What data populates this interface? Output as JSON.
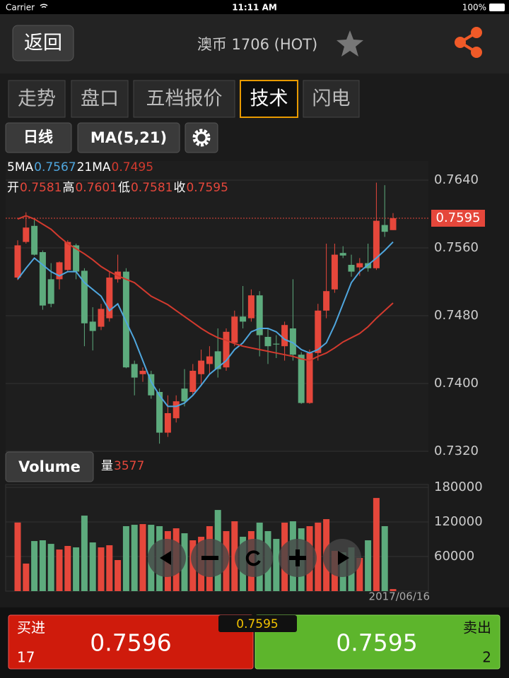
{
  "status_bar": {
    "carrier": "Carrier",
    "time": "11:11 AM",
    "battery": "100%"
  },
  "header": {
    "back": "返回",
    "title": "澳币 1706 (HOT)"
  },
  "tabs": [
    "走势",
    "盘口",
    "五档报价",
    "技术",
    "闪电"
  ],
  "active_tab": 3,
  "toolbar": {
    "period": "日线",
    "indicator": "MA(5,21)"
  },
  "chart_data": [
    {
      "type": "candlestick",
      "ohlc_labels": {
        "open": "开",
        "high": "高",
        "low": "低",
        "close": "收"
      },
      "open": [
        0.7525,
        0.7567,
        0.7586,
        0.7555,
        0.7523,
        0.7523,
        0.7534,
        0.7563,
        0.7533,
        0.7473,
        0.7467,
        0.7477,
        0.7523,
        0.7532,
        0.7423,
        0.7411,
        0.7411,
        0.739,
        0.7342,
        0.7359,
        0.7394,
        0.739,
        0.7411,
        0.7423,
        0.7438,
        0.7419,
        0.7448,
        0.7479,
        0.7477,
        0.7504,
        0.7455,
        0.7447,
        0.7444,
        0.7465,
        0.7434,
        0.7377,
        0.7436,
        0.7486,
        0.7511,
        0.7554,
        0.754,
        0.7537,
        0.7542,
        0.7536,
        0.7587,
        0.7581
      ],
      "high": [
        0.7569,
        0.7602,
        0.7593,
        0.7557,
        0.7542,
        0.7544,
        0.7569,
        0.7565,
        0.7536,
        0.749,
        0.7494,
        0.7532,
        0.7552,
        0.7536,
        0.7427,
        0.7419,
        0.7415,
        0.7394,
        0.7386,
        0.7386,
        0.7417,
        0.7423,
        0.744,
        0.7444,
        0.7465,
        0.7465,
        0.7486,
        0.7515,
        0.7511,
        0.7509,
        0.7465,
        0.7457,
        0.7473,
        0.7523,
        0.7437,
        0.744,
        0.7494,
        0.7565,
        0.7565,
        0.7562,
        0.7552,
        0.7548,
        0.7565,
        0.7637,
        0.7634,
        0.7601
      ],
      "low": [
        0.7522,
        0.7565,
        0.7551,
        0.7487,
        0.749,
        0.7511,
        0.7532,
        0.7523,
        0.7444,
        0.7439,
        0.7463,
        0.7473,
        0.7519,
        0.7418,
        0.7386,
        0.7402,
        0.7382,
        0.7329,
        0.7337,
        0.7354,
        0.7373,
        0.7386,
        0.7398,
        0.7411,
        0.7407,
        0.7415,
        0.7444,
        0.7465,
        0.7473,
        0.7432,
        0.7423,
        0.743,
        0.7427,
        0.7427,
        0.7376,
        0.7376,
        0.7427,
        0.7477,
        0.7507,
        0.7548,
        0.7526,
        0.7527,
        0.7532,
        0.7534,
        0.7573,
        0.7581
      ],
      "close": [
        0.7563,
        0.7584,
        0.7552,
        0.7492,
        0.7494,
        0.7543,
        0.7567,
        0.7532,
        0.7471,
        0.7462,
        0.7488,
        0.7525,
        0.7532,
        0.7419,
        0.7407,
        0.7415,
        0.7386,
        0.7342,
        0.7365,
        0.7379,
        0.7379,
        0.7415,
        0.7427,
        0.7432,
        0.7417,
        0.7461,
        0.7479,
        0.7473,
        0.7504,
        0.7457,
        0.7444,
        0.7446,
        0.7469,
        0.7434,
        0.7377,
        0.7436,
        0.7486,
        0.7509,
        0.7552,
        0.7551,
        0.7532,
        0.7542,
        0.7536,
        0.7592,
        0.7579,
        0.7595
      ],
      "series": [
        {
          "name": "5MA",
          "color": "#4fa6de",
          "values": [
            0.7523,
            0.7536,
            0.7548,
            0.754,
            0.7532,
            0.7527,
            0.7532,
            0.7532,
            0.7519,
            0.7511,
            0.7503,
            0.7486,
            0.7494,
            0.7473,
            0.7452,
            0.7427,
            0.7402,
            0.7386,
            0.7373,
            0.7373,
            0.7377,
            0.7386,
            0.7398,
            0.7411,
            0.7419,
            0.7427,
            0.744,
            0.7448,
            0.7461,
            0.7465,
            0.7465,
            0.7461,
            0.7452,
            0.7448,
            0.744,
            0.7436,
            0.744,
            0.7448,
            0.7469,
            0.7494,
            0.7519,
            0.7532,
            0.754,
            0.7548,
            0.7557,
            0.7567
          ]
        },
        {
          "name": "21MA",
          "color": "#d23a2e",
          "values": [
            0.7594,
            0.7598,
            0.7594,
            0.7588,
            0.7582,
            0.7573,
            0.7565,
            0.7559,
            0.7553,
            0.7546,
            0.7538,
            0.7532,
            0.7527,
            0.7523,
            0.7519,
            0.7511,
            0.7503,
            0.7498,
            0.7493,
            0.7486,
            0.7479,
            0.7472,
            0.7465,
            0.7459,
            0.7454,
            0.7451,
            0.7447,
            0.7444,
            0.7442,
            0.744,
            0.7438,
            0.7436,
            0.7434,
            0.7432,
            0.7429,
            0.7427,
            0.7432,
            0.7436,
            0.7442,
            0.7449,
            0.7454,
            0.7459,
            0.7467,
            0.7477,
            0.7486,
            0.7495
          ]
        }
      ],
      "up_color": "#e5473b",
      "down_color": "#5dab7d",
      "ylim": [
        0.732,
        0.764
      ],
      "yticks": [
        {
          "value": 0.764,
          "label": "0.7640"
        },
        {
          "value": 0.756,
          "label": "0.7560"
        },
        {
          "value": 0.748,
          "label": "0.7480"
        },
        {
          "value": 0.74,
          "label": "0.7400"
        },
        {
          "value": 0.732,
          "label": "0.7320"
        }
      ],
      "grid": true
    },
    {
      "type": "bar",
      "title": "Volume",
      "value_label": "量",
      "values": [
        119000,
        47800,
        86900,
        88200,
        82000,
        72200,
        78400,
        75900,
        131000,
        84500,
        75900,
        79600,
        53900,
        112700,
        115100,
        116300,
        115100,
        112700,
        104100,
        109000,
        100400,
        88200,
        94300,
        112700,
        140800,
        104100,
        121200,
        94300,
        104100,
        118800,
        104100,
        90600,
        118800,
        121200,
        109000,
        112700,
        118800,
        124900,
        69800,
        67300,
        75900,
        57600,
        88200,
        161600,
        112700,
        3577
      ],
      "ylim": [
        0,
        185000
      ],
      "yticks": [
        180000,
        120000,
        60000
      ],
      "x_label": "2017/06/16"
    }
  ],
  "quote": {
    "last": 0.7595,
    "buy_label": "买进",
    "buy_price": 0.7596,
    "buy_qty": 17,
    "sell_label": "卖出",
    "sell_price": 0.7595,
    "sell_qty": 2
  }
}
